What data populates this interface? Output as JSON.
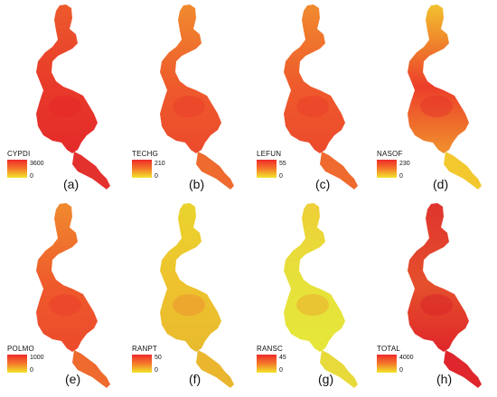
{
  "panels": [
    {
      "label": "(a)",
      "variable": "CYPDI",
      "max": "3600",
      "min": "0",
      "palette": "red"
    },
    {
      "label": "(b)",
      "variable": "TECHG",
      "max": "210",
      "min": "0",
      "palette": "orange-red"
    },
    {
      "label": "(c)",
      "variable": "LEFUN",
      "max": "55",
      "min": "0",
      "palette": "orange-red"
    },
    {
      "label": "(d)",
      "variable": "NASOF",
      "max": "230",
      "min": "0",
      "palette": "mixed-center-red"
    },
    {
      "label": "(e)",
      "variable": "POLMO",
      "max": "1000",
      "min": "0",
      "palette": "orange-red"
    },
    {
      "label": "(f)",
      "variable": "RANPT",
      "max": "50",
      "min": "0",
      "palette": "yellow-orange"
    },
    {
      "label": "(g)",
      "variable": "RANSC",
      "max": "45",
      "min": "0",
      "palette": "yellow"
    },
    {
      "label": "(h)",
      "variable": "TOTAL",
      "max": "4000",
      "min": "0",
      "palette": "red-deep"
    }
  ],
  "colors": {
    "high": "#ee2a2a",
    "mid": "#f47a2a",
    "low": "#f2e52a"
  }
}
